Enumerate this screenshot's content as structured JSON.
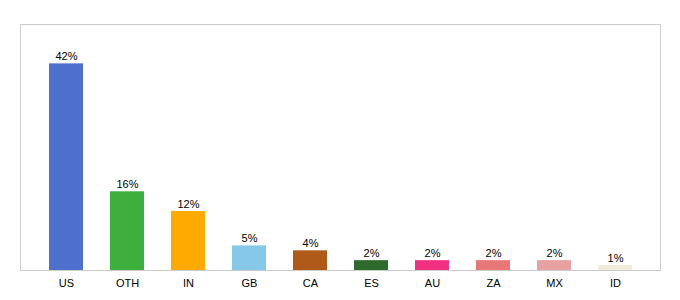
{
  "chart_data": {
    "type": "bar",
    "categories": [
      "US",
      "OTH",
      "IN",
      "GB",
      "CA",
      "ES",
      "AU",
      "ZA",
      "MX",
      "ID"
    ],
    "values": [
      42,
      16,
      12,
      5,
      4,
      2,
      2,
      2,
      2,
      1
    ],
    "value_labels": [
      "42%",
      "16%",
      "12%",
      "5%",
      "4%",
      "2%",
      "2%",
      "2%",
      "2%",
      "1%"
    ],
    "colors": [
      "#4f6fcd",
      "#3caf3c",
      "#ffaa00",
      "#85c8e8",
      "#b05a1a",
      "#2d6b2d",
      "#f03080",
      "#e87878",
      "#e8a0a0",
      "#f0ecd8"
    ],
    "ylim": [
      0,
      50
    ],
    "data_labels": true,
    "tick_labels": "x",
    "grid": false
  }
}
